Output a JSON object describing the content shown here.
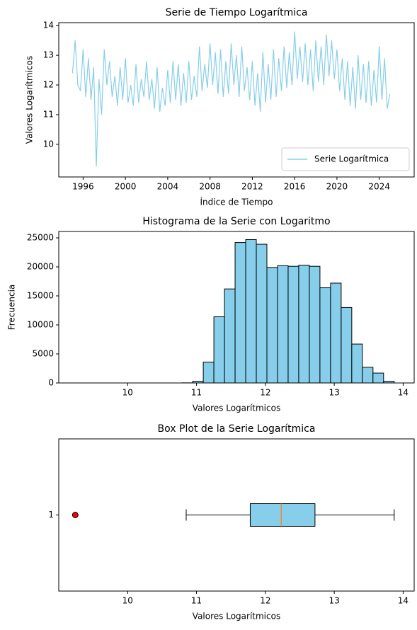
{
  "chart_data": [
    {
      "type": "line",
      "title": "Serie de Tiempo Logarítmica",
      "xlabel": "Índice de Tiempo",
      "ylabel": "Valores Logarítmicos",
      "x": [
        1995.0,
        1995.25,
        1995.5,
        1995.75,
        1996.0,
        1996.25,
        1996.5,
        1996.75,
        1997.0,
        1997.25,
        1997.5,
        1997.75,
        1998.0,
        1998.25,
        1998.5,
        1998.75,
        1999.0,
        1999.25,
        1999.5,
        1999.75,
        2000.0,
        2000.25,
        2000.5,
        2000.75,
        2001.0,
        2001.25,
        2001.5,
        2001.75,
        2002.0,
        2002.25,
        2002.5,
        2002.75,
        2003.0,
        2003.25,
        2003.5,
        2003.75,
        2004.0,
        2004.25,
        2004.5,
        2004.75,
        2005.0,
        2005.25,
        2005.5,
        2005.75,
        2006.0,
        2006.25,
        2006.5,
        2006.75,
        2007.0,
        2007.25,
        2007.5,
        2007.75,
        2008.0,
        2008.25,
        2008.5,
        2008.75,
        2009.0,
        2009.25,
        2009.5,
        2009.75,
        2010.0,
        2010.25,
        2010.5,
        2010.75,
        2011.0,
        2011.25,
        2011.5,
        2011.75,
        2012.0,
        2012.25,
        2012.5,
        2012.75,
        2013.0,
        2013.25,
        2013.5,
        2013.75,
        2014.0,
        2014.25,
        2014.5,
        2014.75,
        2015.0,
        2015.25,
        2015.5,
        2015.75,
        2016.0,
        2016.25,
        2016.5,
        2016.75,
        2017.0,
        2017.25,
        2017.5,
        2017.75,
        2018.0,
        2018.25,
        2018.5,
        2018.75,
        2019.0,
        2019.25,
        2019.5,
        2019.75,
        2020.0,
        2020.25,
        2020.5,
        2020.75,
        2021.0,
        2021.25,
        2021.5,
        2021.75,
        2022.0,
        2022.25,
        2022.5,
        2022.75,
        2023.0,
        2023.25,
        2023.5,
        2023.75,
        2024.0,
        2024.25,
        2024.5,
        2024.75,
        2025.0
      ],
      "series": [
        {
          "name": "Serie Logarítmica",
          "color": "#87ceeb",
          "values": [
            12.4,
            13.5,
            12.0,
            11.8,
            13.2,
            11.6,
            12.9,
            11.5,
            12.6,
            9.25,
            12.2,
            11.0,
            13.2,
            12.0,
            12.8,
            11.6,
            12.3,
            11.3,
            12.6,
            11.5,
            12.9,
            11.4,
            12.0,
            11.3,
            12.7,
            11.4,
            12.2,
            11.6,
            12.8,
            11.5,
            12.2,
            11.2,
            12.6,
            11.1,
            11.9,
            11.3,
            12.5,
            11.4,
            12.8,
            11.5,
            12.7,
            11.3,
            12.4,
            11.4,
            12.8,
            11.5,
            12.3,
            11.6,
            13.3,
            11.8,
            12.7,
            11.9,
            13.4,
            12.0,
            13.1,
            11.7,
            13.2,
            11.6,
            12.8,
            11.7,
            13.4,
            12.0,
            13.0,
            11.6,
            13.3,
            11.8,
            12.6,
            11.5,
            12.8,
            11.3,
            12.4,
            11.1,
            13.1,
            11.4,
            12.7,
            11.5,
            13.2,
            11.6,
            12.9,
            11.8,
            13.3,
            11.9,
            13.1,
            12.0,
            13.8,
            12.2,
            13.3,
            12.1,
            13.4,
            12.0,
            13.2,
            11.8,
            13.5,
            12.1,
            13.3,
            12.0,
            13.7,
            12.3,
            13.5,
            12.2,
            13.2,
            11.8,
            12.9,
            11.5,
            12.8,
            11.3,
            12.6,
            11.2,
            13.0,
            11.5,
            12.7,
            11.4,
            12.8,
            11.3,
            12.5,
            11.4,
            13.3,
            11.5,
            12.9,
            11.2,
            11.7
          ]
        }
      ],
      "xlim": [
        1993.7,
        2027.3
      ],
      "ylim": [
        8.9,
        14.1
      ],
      "xticks": [
        1996,
        2000,
        2004,
        2008,
        2012,
        2016,
        2020,
        2024
      ],
      "yticks": [
        10,
        11,
        12,
        13,
        14
      ],
      "legend": "lower right"
    },
    {
      "type": "histogram",
      "title": "Histograma de la Serie con Logaritmo",
      "xlabel": "Valores Logarítmicos",
      "ylabel": "Frecuencia",
      "bins": [
        9.25,
        9.404,
        9.558,
        9.712,
        9.866,
        10.02,
        10.174,
        10.328,
        10.482,
        10.636,
        10.79,
        10.944,
        11.098,
        11.252,
        11.406,
        11.56,
        11.714,
        11.868,
        12.022,
        12.176,
        12.33,
        12.484,
        12.638,
        12.792,
        12.946,
        13.1,
        13.254,
        13.408,
        13.562,
        13.716,
        13.87
      ],
      "values": [
        1,
        0,
        0,
        0,
        0,
        0,
        0,
        0,
        0,
        0,
        20,
        300,
        3600,
        11400,
        16200,
        24200,
        24700,
        23900,
        19900,
        20200,
        20100,
        20300,
        20100,
        16400,
        17200,
        13000,
        6700,
        2700,
        1700,
        300
      ],
      "color": "#87ceeb",
      "edgecolor": "#000000",
      "xlim": [
        9.0,
        14.16
      ],
      "ylim": [
        0,
        26100
      ],
      "xticks": [
        10,
        11,
        12,
        13,
        14
      ],
      "yticks": [
        0,
        5000,
        10000,
        15000,
        20000,
        25000
      ]
    },
    {
      "type": "box",
      "title": "Box Plot de la Serie Logarítmica",
      "xlabel": "Valores Logarítmicos",
      "categories": [
        "1"
      ],
      "boxes": [
        {
          "whisker_low": 10.85,
          "q1": 11.78,
          "median": 12.23,
          "q3": 12.72,
          "whisker_high": 13.87,
          "outliers": [
            9.24
          ]
        }
      ],
      "color": "#87ceeb",
      "median_color": "#ff7f0e",
      "outlier_color": "#ff0000",
      "xlim": [
        9.0,
        14.16
      ],
      "ylim": [
        0.5,
        1.5
      ],
      "xticks": [
        10,
        11,
        12,
        13,
        14
      ]
    }
  ]
}
